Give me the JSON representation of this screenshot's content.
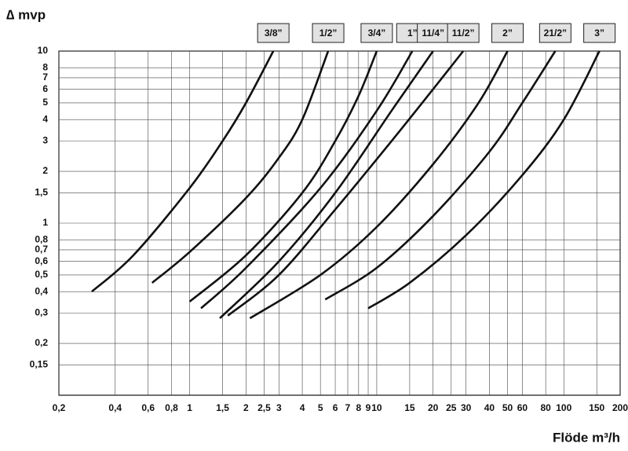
{
  "chart_data": {
    "type": "line",
    "ylabel": "∆ mvp",
    "xlabel": "Flöde m³/h",
    "xscale": "log",
    "yscale": "log",
    "grid": true,
    "xlim": [
      0.2,
      200
    ],
    "ylim": [
      0.1,
      10
    ],
    "xticks": [
      {
        "value": 0.2,
        "label": "0,2"
      },
      {
        "value": 0.4,
        "label": "0,4"
      },
      {
        "value": 0.6,
        "label": "0,6"
      },
      {
        "value": 0.8,
        "label": "0,8"
      },
      1,
      {
        "value": 1.5,
        "label": "1,5"
      },
      2,
      {
        "value": 2.5,
        "label": "2,5"
      },
      3,
      4,
      5,
      6,
      7,
      8,
      9,
      10,
      15,
      20,
      25,
      30,
      40,
      50,
      60,
      80,
      100,
      150,
      200
    ],
    "yticks": [
      {
        "value": 0.15,
        "label": "0,15"
      },
      {
        "value": 0.2,
        "label": "0,2"
      },
      {
        "value": 0.3,
        "label": "0,3"
      },
      {
        "value": 0.4,
        "label": "0,4"
      },
      {
        "value": 0.5,
        "label": "0,5"
      },
      {
        "value": 0.6,
        "label": "0,6"
      },
      {
        "value": 0.7,
        "label": "0,7"
      },
      {
        "value": 0.8,
        "label": "0,8"
      },
      1,
      {
        "value": 1.5,
        "label": "1,5"
      },
      2,
      3,
      4,
      5,
      6,
      7,
      8,
      10
    ],
    "series": [
      {
        "name": "3/8”",
        "color": "#111111",
        "x": [
          0.3,
          0.5,
          1,
          1.5,
          2,
          2.8
        ],
        "values": [
          0.4,
          0.65,
          1.6,
          3,
          5,
          10
        ]
      },
      {
        "name": "1/2”",
        "color": "#111111",
        "x": [
          0.63,
          1,
          2,
          3,
          4,
          5.5
        ],
        "values": [
          0.45,
          0.68,
          1.4,
          2.4,
          4,
          10
        ]
      },
      {
        "name": "3/4”",
        "color": "#111111",
        "x": [
          1,
          2,
          4,
          6,
          8,
          10
        ],
        "values": [
          0.35,
          0.65,
          1.5,
          3,
          5.5,
          10
        ]
      },
      {
        "name": "1”",
        "color": "#111111",
        "x": [
          1.15,
          2,
          5,
          10,
          15.5
        ],
        "values": [
          0.32,
          0.55,
          1.6,
          4.5,
          10
        ]
      },
      {
        "name": "11/4”",
        "color": "#111111",
        "x": [
          1.45,
          3,
          6,
          12,
          20
        ],
        "values": [
          0.28,
          0.6,
          1.5,
          4.5,
          10
        ]
      },
      {
        "name": "11/2”",
        "color": "#111111",
        "x": [
          1.6,
          3,
          6,
          12,
          20,
          29
        ],
        "values": [
          0.29,
          0.5,
          1.2,
          3,
          6,
          10
        ]
      },
      {
        "name": "2”",
        "color": "#111111",
        "x": [
          2.1,
          5,
          10,
          20,
          35,
          50
        ],
        "values": [
          0.28,
          0.5,
          0.95,
          2.2,
          5,
          10
        ]
      },
      {
        "name": "21/2”",
        "color": "#111111",
        "x": [
          5.3,
          10,
          20,
          40,
          60,
          90
        ],
        "values": [
          0.36,
          0.55,
          1.1,
          2.6,
          5,
          10
        ]
      },
      {
        "name": "3”",
        "color": "#111111",
        "x": [
          9,
          15,
          30,
          60,
          100,
          155
        ],
        "values": [
          0.32,
          0.45,
          0.85,
          1.9,
          4,
          10
        ]
      }
    ]
  }
}
